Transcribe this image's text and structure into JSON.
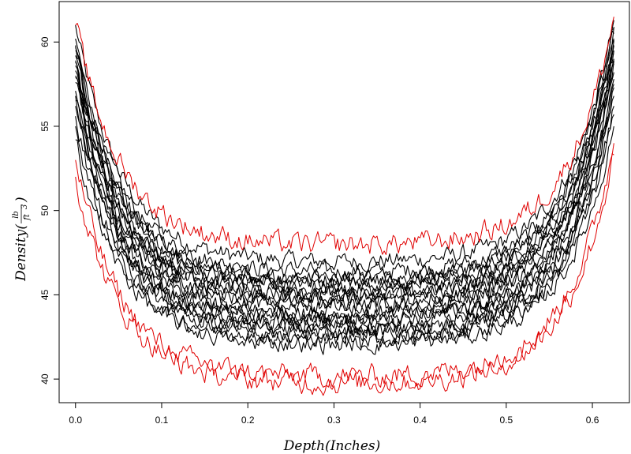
{
  "chart_data": {
    "type": "line",
    "title": "",
    "xlabel": "Depth(Inches)",
    "ylabel": {
      "prefix": "Density(",
      "num": "lb",
      "den": "ft",
      "den_sup": "3",
      "suffix": ")"
    },
    "xlim": [
      -0.019,
      0.643
    ],
    "ylim": [
      38.6,
      62.4
    ],
    "x_ticks": [
      0.0,
      0.1,
      0.2,
      0.3,
      0.4,
      0.5,
      0.6
    ],
    "x_tick_labels": [
      "0.0",
      "0.1",
      "0.2",
      "0.3",
      "0.4",
      "0.5",
      "0.6"
    ],
    "y_ticks": [
      40,
      45,
      50,
      55,
      60
    ],
    "y_tick_labels": [
      "40",
      "45",
      "50",
      "55",
      "60"
    ],
    "grid": false,
    "legend": "none",
    "x_range": [
      0.0,
      0.625
    ],
    "series_colors": {
      "curves": "#000000",
      "bounds": "#e00000"
    },
    "series": [
      {
        "group": "bounds",
        "start": 61.0,
        "mid": 47.9,
        "end": 61.5
      },
      {
        "group": "bounds",
        "start": 53.0,
        "mid": 40.1,
        "end": 54.0
      },
      {
        "group": "bounds",
        "start": 52.0,
        "mid": 39.7,
        "end": 53.3
      },
      {
        "group": "curves",
        "start": 61.0,
        "mid": 46.9,
        "end": 61.3
      },
      {
        "group": "curves",
        "start": 60.2,
        "mid": 46.3,
        "end": 60.8
      },
      {
        "group": "curves",
        "start": 59.8,
        "mid": 45.9,
        "end": 60.5
      },
      {
        "group": "curves",
        "start": 59.5,
        "mid": 45.6,
        "end": 60.2
      },
      {
        "group": "curves",
        "start": 59.2,
        "mid": 45.3,
        "end": 59.8
      },
      {
        "group": "curves",
        "start": 58.8,
        "mid": 45.0,
        "end": 59.5
      },
      {
        "group": "curves",
        "start": 58.6,
        "mid": 44.7,
        "end": 59.3
      },
      {
        "group": "curves",
        "start": 58.3,
        "mid": 44.4,
        "end": 59.0
      },
      {
        "group": "curves",
        "start": 58.0,
        "mid": 44.1,
        "end": 58.7
      },
      {
        "group": "curves",
        "start": 57.6,
        "mid": 43.8,
        "end": 58.2
      },
      {
        "group": "curves",
        "start": 57.1,
        "mid": 43.5,
        "end": 57.8
      },
      {
        "group": "curves",
        "start": 56.8,
        "mid": 43.2,
        "end": 57.3
      },
      {
        "group": "curves",
        "start": 56.2,
        "mid": 42.9,
        "end": 56.8
      },
      {
        "group": "curves",
        "start": 55.6,
        "mid": 42.6,
        "end": 56.2
      },
      {
        "group": "curves",
        "start": 55.0,
        "mid": 42.3,
        "end": 55.7
      },
      {
        "group": "curves",
        "start": 54.2,
        "mid": 42.0,
        "end": 55.0
      },
      {
        "group": "curves",
        "start": 58.9,
        "mid": 44.9,
        "end": 60.1
      },
      {
        "group": "curves",
        "start": 59.7,
        "mid": 45.8,
        "end": 60.9
      },
      {
        "group": "curves",
        "start": 57.9,
        "mid": 43.6,
        "end": 58.9
      },
      {
        "group": "curves",
        "start": 56.5,
        "mid": 42.8,
        "end": 57.5
      }
    ]
  }
}
